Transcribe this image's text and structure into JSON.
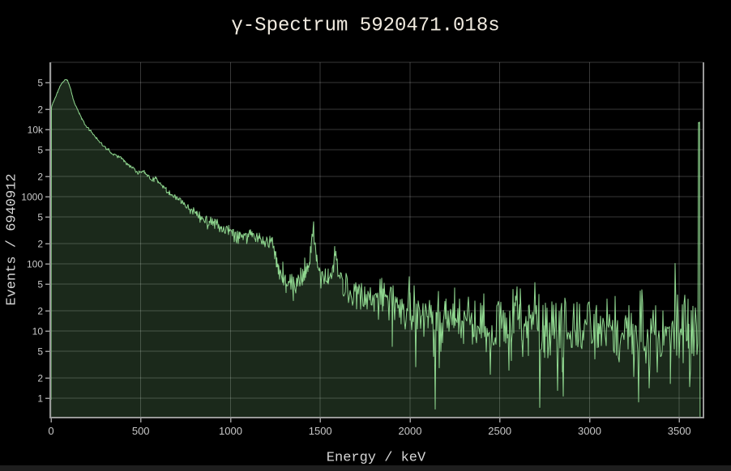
{
  "colors": {
    "background": "#000000",
    "line": "#90d890",
    "fill": "rgba(144,216,144,0.19)",
    "grid": "rgba(255,255,255,0.22)",
    "axis": "#9a9a9a",
    "tick_label": "#c8c8c8",
    "title": "#f1ebe0",
    "axis_label": "#d6d6d6",
    "scrollbar": "#1e1e1e"
  },
  "chart_data": {
    "type": "area",
    "title": "γ-Spectrum 5920471.018s",
    "xlabel": "Energy / keV",
    "ylabel": "Events / 6940912",
    "x_range": [
      0,
      3630
    ],
    "y_range": [
      0.53,
      100000
    ],
    "y_scale": "log",
    "grid": true,
    "legend": "none",
    "x_ticks": {
      "values": [
        0,
        500,
        1000,
        1500,
        2000,
        2500,
        3000,
        3500
      ],
      "labels": [
        "0",
        "500",
        "1000",
        "1500",
        "2000",
        "2500",
        "3000",
        "3500"
      ]
    },
    "y_ticks": {
      "values": [
        1,
        2,
        5,
        10,
        20,
        50,
        100,
        200,
        500,
        1000,
        2000,
        5000,
        10000,
        20000,
        50000
      ],
      "labels": [
        "1",
        "2",
        "5",
        "10",
        "2",
        "5",
        "100",
        "2",
        "5",
        "1000",
        "2",
        "5",
        "10k",
        "2",
        "5"
      ]
    },
    "grid_extra_y": [
      100000
    ],
    "series": [
      {
        "name": "gamma-spectrum",
        "color": "#90d890",
        "fill": "rgba(144,216,144,0.19)",
        "envelope_points": [
          [
            0,
            0.55
          ],
          [
            2,
            21000
          ],
          [
            10,
            25000
          ],
          [
            22,
            29000
          ],
          [
            36,
            36000
          ],
          [
            50,
            44000
          ],
          [
            64,
            50000
          ],
          [
            76,
            54500
          ],
          [
            84,
            56000
          ],
          [
            92,
            54000
          ],
          [
            100,
            48000
          ],
          [
            110,
            39000
          ],
          [
            120,
            30500
          ],
          [
            132,
            24500
          ],
          [
            145,
            20500
          ],
          [
            158,
            17000
          ],
          [
            172,
            14200
          ],
          [
            186,
            12400
          ],
          [
            200,
            10800
          ],
          [
            212,
            9900
          ],
          [
            228,
            9100
          ],
          [
            238,
            8300
          ],
          [
            252,
            7500
          ],
          [
            268,
            6700
          ],
          [
            284,
            6000
          ],
          [
            300,
            5500
          ],
          [
            316,
            5000
          ],
          [
            332,
            4600
          ],
          [
            348,
            4300
          ],
          [
            364,
            4080
          ],
          [
            380,
            3920
          ],
          [
            394,
            3750
          ],
          [
            408,
            3400
          ],
          [
            424,
            3080
          ],
          [
            440,
            2850
          ],
          [
            456,
            2650
          ],
          [
            472,
            2450
          ],
          [
            490,
            2280
          ],
          [
            505,
            2300
          ],
          [
            512,
            2380
          ],
          [
            520,
            2280
          ],
          [
            534,
            2080
          ],
          [
            548,
            1920
          ],
          [
            564,
            1780
          ],
          [
            574,
            1820
          ],
          [
            584,
            1860
          ],
          [
            596,
            1680
          ],
          [
            610,
            1520
          ],
          [
            626,
            1380
          ],
          [
            642,
            1250
          ],
          [
            658,
            1130
          ],
          [
            674,
            1040
          ],
          [
            686,
            1080
          ],
          [
            696,
            960
          ],
          [
            706,
            905
          ],
          [
            714,
            950
          ],
          [
            724,
            860
          ],
          [
            740,
            780
          ],
          [
            758,
            705
          ],
          [
            776,
            645
          ],
          [
            794,
            590
          ],
          [
            812,
            545
          ],
          [
            830,
            505
          ],
          [
            848,
            468
          ],
          [
            866,
            436
          ],
          [
            880,
            415
          ],
          [
            892,
            432
          ],
          [
            902,
            444
          ],
          [
            912,
            424
          ],
          [
            930,
            385
          ],
          [
            950,
            352
          ],
          [
            970,
            328
          ],
          [
            990,
            308
          ],
          [
            1010,
            292
          ],
          [
            1030,
            277
          ],
          [
            1050,
            264
          ],
          [
            1070,
            254
          ],
          [
            1090,
            247
          ],
          [
            1100,
            258
          ],
          [
            1110,
            268
          ],
          [
            1120,
            254
          ],
          [
            1140,
            237
          ],
          [
            1160,
            227
          ],
          [
            1180,
            218
          ],
          [
            1200,
            211
          ],
          [
            1220,
            204
          ],
          [
            1232,
            198
          ],
          [
            1240,
            185
          ],
          [
            1246,
            148
          ],
          [
            1252,
            112
          ],
          [
            1258,
            92
          ],
          [
            1266,
            80
          ],
          [
            1276,
            72
          ],
          [
            1290,
            67
          ],
          [
            1310,
            63
          ],
          [
            1330,
            61
          ],
          [
            1350,
            59
          ],
          [
            1370,
            57.5
          ],
          [
            1390,
            57
          ],
          [
            1402,
            59
          ],
          [
            1412,
            63
          ],
          [
            1422,
            70
          ],
          [
            1432,
            84
          ],
          [
            1442,
            112
          ],
          [
            1449,
            175
          ],
          [
            1455,
            278
          ],
          [
            1460,
            332
          ],
          [
            1465,
            288
          ],
          [
            1471,
            180
          ],
          [
            1478,
            108
          ],
          [
            1486,
            80
          ],
          [
            1496,
            69
          ],
          [
            1512,
            63
          ],
          [
            1528,
            59
          ],
          [
            1544,
            57
          ],
          [
            1556,
            59
          ],
          [
            1566,
            67
          ],
          [
            1574,
            87
          ],
          [
            1581,
            116
          ],
          [
            1587,
            128
          ],
          [
            1594,
            102
          ],
          [
            1601,
            78
          ],
          [
            1610,
            61
          ],
          [
            1626,
            53
          ],
          [
            1650,
            48
          ],
          [
            1700,
            40
          ],
          [
            1750,
            35
          ],
          [
            1800,
            31.5
          ],
          [
            1850,
            28.5
          ],
          [
            1900,
            26
          ],
          [
            1950,
            24
          ],
          [
            2000,
            22
          ],
          [
            2050,
            20.5
          ],
          [
            2100,
            19
          ],
          [
            2150,
            17.6
          ],
          [
            2200,
            16.3
          ],
          [
            2250,
            15.1
          ],
          [
            2300,
            14
          ],
          [
            2350,
            13
          ],
          [
            2400,
            12.2
          ],
          [
            2450,
            11.5
          ],
          [
            2500,
            10.9
          ],
          [
            2540,
            10.7
          ],
          [
            2565,
            12.5
          ],
          [
            2578,
            19
          ],
          [
            2587,
            25.5
          ],
          [
            2598,
            19
          ],
          [
            2610,
            13
          ],
          [
            2622,
            10.8
          ],
          [
            2660,
            10.1
          ],
          [
            2750,
            9.9
          ],
          [
            2850,
            9.7
          ],
          [
            2950,
            9.9
          ],
          [
            3050,
            10.1
          ],
          [
            3150,
            10.0
          ],
          [
            3250,
            10.0
          ],
          [
            3350,
            9.9
          ],
          [
            3450,
            9.8
          ],
          [
            3550,
            9.6
          ],
          [
            3596,
            9.5
          ],
          [
            3604,
            9.8
          ],
          [
            3607,
            12800
          ],
          [
            3613,
            12800
          ],
          [
            3616,
            0.55
          ]
        ],
        "noise": {
          "seed": 1337,
          "coeff": 0.9,
          "max_sigma": 0.35,
          "dropout_threshold": 30,
          "dropout_prob": 0.03,
          "dropout_depth": [
            0.35,
            1.25
          ]
        }
      }
    ]
  }
}
